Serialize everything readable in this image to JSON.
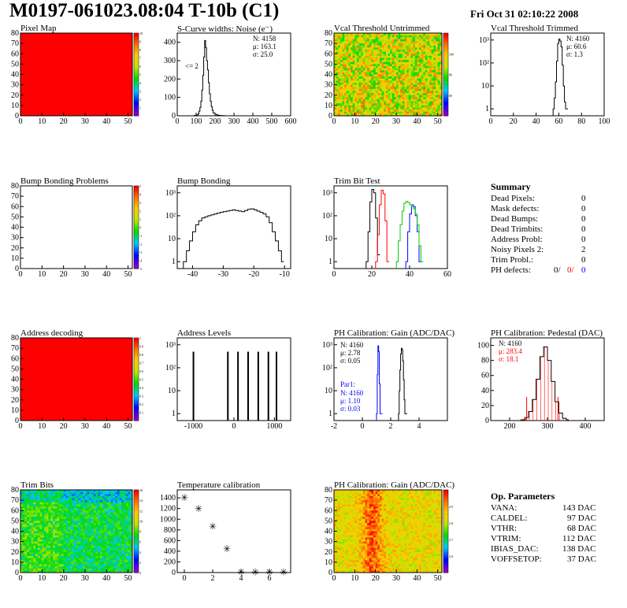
{
  "header": {
    "title": "M0197-061023.08:04 T-10b (C1)",
    "date": "Fri Oct 31 02:10:22 2008"
  },
  "panels": [
    {
      "id": "pixel-map",
      "title": "Pixel Map"
    },
    {
      "id": "scurve",
      "title": "S-Curve widths: Noise (e⁻)"
    },
    {
      "id": "vcal-untrimmed",
      "title": "Vcal Threshold Untrimmed"
    },
    {
      "id": "vcal-trimmed",
      "title": "Vcal Threshold Trimmed"
    },
    {
      "id": "bump-problems",
      "title": "Bump Bonding Problems"
    },
    {
      "id": "bump-bonding",
      "title": "Bump Bonding"
    },
    {
      "id": "trim-bit-test",
      "title": "Trim Bit Test"
    },
    {
      "id": "summary",
      "title": "Summary"
    },
    {
      "id": "address-decoding",
      "title": "Address decoding"
    },
    {
      "id": "address-levels",
      "title": "Address Levels"
    },
    {
      "id": "ph-gain",
      "title": "PH Calibration: Gain (ADC/DAC)"
    },
    {
      "id": "ph-pedestal",
      "title": "PH Calibration: Pedestal (DAC)"
    },
    {
      "id": "trim-bits",
      "title": "Trim Bits"
    },
    {
      "id": "temp-cal",
      "title": "Temperature calibration"
    },
    {
      "id": "ph-gain-map",
      "title": "PH Calibration: Gain (ADC/DAC)"
    },
    {
      "id": "op-params",
      "title": "Op. Parameters"
    }
  ],
  "summary": {
    "title": "Summary",
    "rows": [
      {
        "label": "Dead Pixels:",
        "value": "0"
      },
      {
        "label": "Mask defects:",
        "value": "0"
      },
      {
        "label": "Dead Bumps:",
        "value": "0"
      },
      {
        "label": "Dead Trimbits:",
        "value": "0"
      },
      {
        "label": "Address Probl:",
        "value": "0"
      },
      {
        "label": "Noisy Pixels 2:",
        "value": "2"
      },
      {
        "label": "Trim Probl.:",
        "value": "0"
      }
    ],
    "ph_defects": {
      "label": "PH defects:",
      "v1": "0/",
      "v2": "0/",
      "v3": "0"
    },
    "colors": {
      "red": "#ff0000",
      "blue": "#0000ff"
    }
  },
  "op_params": {
    "title": "Op. Parameters",
    "rows": [
      {
        "label": "VANA:",
        "value": "143 DAC"
      },
      {
        "label": "CALDEL:",
        "value": "97 DAC"
      },
      {
        "label": "VTHR:",
        "value": "68 DAC"
      },
      {
        "label": "VTRIM:",
        "value": "112 DAC"
      },
      {
        "label": "IBIAS_DAC:",
        "value": "138 DAC"
      },
      {
        "label": "VOFFSETOP:",
        "value": "37 DAC"
      }
    ]
  },
  "chart_data": [
    {
      "id": "pixel-map",
      "type": "heatmap",
      "fill": "uniform-red",
      "x_range": [
        0,
        52
      ],
      "y_range": [
        0,
        80
      ],
      "x_ticks": [
        "0",
        "10",
        "20",
        "30",
        "40",
        "50"
      ],
      "y_ticks": [
        "0",
        "10",
        "20",
        "30",
        "40",
        "50",
        "60",
        "70",
        "80"
      ],
      "z_ticks": [
        "1",
        "2",
        "3",
        "4",
        "5",
        "6",
        "7",
        "8",
        "9",
        "10"
      ],
      "z_range": [
        0,
        10
      ]
    },
    {
      "id": "scurve",
      "type": "line",
      "x_range": [
        0,
        600
      ],
      "y_range": [
        0,
        450
      ],
      "x_ticks": [
        "0",
        "100",
        "200",
        "300",
        "400",
        "500",
        "600"
      ],
      "y_ticks": [
        "0",
        "100",
        "200",
        "300",
        "400"
      ],
      "x": [
        80,
        90,
        100,
        110,
        115,
        120,
        125,
        130,
        135,
        140,
        145,
        150,
        155,
        160,
        165,
        170,
        175,
        180,
        185,
        190,
        200,
        210,
        220,
        230,
        240,
        250,
        260,
        270
      ],
      "y": [
        0,
        2,
        5,
        12,
        25,
        45,
        80,
        140,
        220,
        320,
        410,
        370,
        300,
        250,
        180,
        120,
        80,
        50,
        30,
        15,
        8,
        4,
        2,
        1,
        1,
        0,
        0,
        0
      ],
      "stats": {
        "N": "N: 4158",
        "mu": "μ: 163.1",
        "sigma": "σ: 25.0"
      },
      "annotation": "<= 2"
    },
    {
      "id": "vcal-untrimmed",
      "type": "heatmap",
      "fill": "noise-hot",
      "x_range": [
        0,
        52
      ],
      "y_range": [
        0,
        80
      ],
      "x_ticks": [
        "0",
        "10",
        "20",
        "30",
        "40",
        "50"
      ],
      "y_ticks": [
        "0",
        "10",
        "20",
        "30",
        "40",
        "50",
        "60",
        "70",
        "80"
      ],
      "z_ticks": [
        "60",
        "80",
        "100"
      ],
      "z_range": [
        40,
        120
      ]
    },
    {
      "id": "vcal-trimmed",
      "type": "line",
      "log_y": true,
      "x_range": [
        0,
        100
      ],
      "y_range": [
        0.5,
        2000
      ],
      "x_ticks": [
        "0",
        "20",
        "40",
        "60",
        "80",
        "100"
      ],
      "y_ticks": [
        "1",
        "10",
        "10²",
        "10³"
      ],
      "x": [
        55,
        56,
        57,
        58,
        59,
        60,
        61,
        62,
        63,
        64,
        65,
        66
      ],
      "y": [
        1,
        3,
        15,
        120,
        700,
        1100,
        900,
        500,
        80,
        10,
        2,
        1
      ],
      "stats": {
        "N": "N: 4160",
        "mu": "μ: 60.6",
        "sigma": "σ: 1.3"
      }
    },
    {
      "id": "bump-problems",
      "type": "heatmap",
      "fill": "empty",
      "x_range": [
        0,
        52
      ],
      "y_range": [
        0,
        80
      ],
      "x_ticks": [
        "0",
        "10",
        "20",
        "30",
        "40",
        "50"
      ],
      "y_ticks": [
        "0",
        "10",
        "20",
        "30",
        "40",
        "50",
        "60",
        "70",
        "80"
      ],
      "z_ticks": [
        "-5",
        "-4",
        "-3",
        "-2",
        "-1",
        "0",
        "1",
        "2",
        "3",
        "4",
        "5"
      ],
      "z_range": [
        -5,
        5
      ]
    },
    {
      "id": "bump-bonding",
      "type": "line",
      "log_y": true,
      "x_range": [
        -45,
        -8
      ],
      "y_range": [
        0.5,
        2000
      ],
      "x_ticks": [
        "-40",
        "-30",
        "-20",
        "-10"
      ],
      "y_ticks": [
        "1",
        "10",
        "10²",
        "10³"
      ],
      "x": [
        -43,
        -42,
        -41,
        -40,
        -39,
        -38,
        -37,
        -36,
        -35,
        -34,
        -33,
        -32,
        -31,
        -30,
        -29,
        -28,
        -27,
        -26,
        -25,
        -24,
        -23,
        -22,
        -21,
        -20,
        -19,
        -18,
        -17,
        -16,
        -15,
        -14,
        -13,
        -12,
        -11
      ],
      "y": [
        1,
        3,
        8,
        20,
        40,
        60,
        80,
        90,
        100,
        110,
        120,
        130,
        140,
        150,
        160,
        170,
        180,
        170,
        160,
        150,
        170,
        190,
        200,
        180,
        160,
        140,
        120,
        90,
        50,
        20,
        8,
        3,
        1
      ]
    },
    {
      "id": "trim-bit-test",
      "type": "line",
      "log_y": true,
      "x_range": [
        0,
        60
      ],
      "y_range": [
        0.5,
        2000
      ],
      "x_ticks": [
        "0",
        "20",
        "40",
        "60"
      ],
      "y_ticks": [
        "1",
        "10",
        "10²",
        "10³"
      ],
      "series": [
        {
          "color": "#000000",
          "x": [
            17,
            18,
            19,
            20,
            21,
            22,
            23
          ],
          "y": [
            1,
            20,
            400,
            1400,
            1000,
            80,
            2
          ]
        },
        {
          "color": "#ff0000",
          "x": [
            22,
            23,
            24,
            25,
            26,
            27,
            28
          ],
          "y": [
            1,
            15,
            300,
            1300,
            900,
            60,
            1
          ]
        },
        {
          "color": "#0000ff",
          "x": [
            38,
            39,
            40,
            41,
            42,
            43,
            44,
            45
          ],
          "y": [
            1,
            20,
            120,
            300,
            250,
            100,
            20,
            1
          ]
        },
        {
          "color": "#00cc00",
          "x": [
            33,
            34,
            35,
            36,
            37,
            38,
            39,
            40,
            41,
            42,
            43,
            44,
            45,
            46
          ],
          "y": [
            1,
            8,
            40,
            160,
            350,
            420,
            380,
            300,
            250,
            200,
            120,
            40,
            5,
            1
          ]
        }
      ]
    },
    {
      "id": "address-decoding",
      "type": "heatmap",
      "fill": "uniform-red",
      "x_range": [
        0,
        52
      ],
      "y_range": [
        0,
        80
      ],
      "x_ticks": [
        "0",
        "10",
        "20",
        "30",
        "40",
        "50"
      ],
      "y_ticks": [
        "0",
        "10",
        "20",
        "30",
        "40",
        "50",
        "60",
        "70",
        "80"
      ],
      "z_ticks": [
        "0.1",
        "0.2",
        "0.3",
        "0.4",
        "0.5",
        "0.6",
        "0.7",
        "0.8",
        "0.9",
        "1"
      ],
      "z_range": [
        0,
        1
      ]
    },
    {
      "id": "address-levels",
      "type": "bar",
      "log_y": true,
      "x_range": [
        -1400,
        1400
      ],
      "y_range": [
        0.5,
        2000
      ],
      "x_ticks": [
        "-1000",
        "0",
        "1000"
      ],
      "y_ticks": [
        "1",
        "10",
        "10²",
        "10³"
      ],
      "x": [
        -1000,
        -150,
        100,
        350,
        600,
        850,
        1050
      ],
      "y": [
        500,
        500,
        500,
        500,
        500,
        500,
        500
      ]
    },
    {
      "id": "ph-gain",
      "type": "line",
      "log_y": true,
      "x_range": [
        -2,
        6
      ],
      "y_range": [
        0.5,
        2000
      ],
      "x_ticks": [
        "-2",
        "0",
        "2",
        "4"
      ],
      "y_ticks": [
        "1",
        "10",
        "10²",
        "10³"
      ],
      "series": [
        {
          "color": "#000000",
          "x": [
            2.55,
            2.6,
            2.65,
            2.7,
            2.75,
            2.8,
            2.85,
            2.9,
            2.95,
            3.0
          ],
          "y": [
            1,
            10,
            80,
            400,
            700,
            600,
            200,
            30,
            4,
            1
          ]
        },
        {
          "color": "#0000ff",
          "x": [
            1.0,
            1.05,
            1.1,
            1.15,
            1.2,
            1.25
          ],
          "y": [
            1,
            50,
            900,
            500,
            20,
            1
          ]
        }
      ],
      "stats": {
        "N": "N: 4160",
        "mu": "μ: 2.78",
        "sigma": "σ: 0.05"
      },
      "stats2": {
        "label": "Par1:",
        "N": "N: 4160",
        "mu": "μ: 1.10",
        "sigma": "σ: 0.03"
      }
    },
    {
      "id": "ph-pedestal",
      "type": "line",
      "x_range": [
        150,
        450
      ],
      "y_range": [
        0,
        110
      ],
      "x_ticks": [
        "200",
        "300",
        "400"
      ],
      "y_ticks": [
        "0",
        "20",
        "40",
        "60",
        "80",
        "100"
      ],
      "x": [
        230,
        240,
        250,
        260,
        270,
        280,
        290,
        300,
        310,
        320,
        330,
        340,
        350
      ],
      "y": [
        1,
        4,
        12,
        28,
        55,
        85,
        98,
        80,
        52,
        25,
        10,
        3,
        1
      ],
      "stats": {
        "N": "N: 4160",
        "mu": "μ: 283.4",
        "sigma": "σ: 18.1"
      }
    },
    {
      "id": "trim-bits",
      "type": "heatmap",
      "fill": "noise-green",
      "x_range": [
        0,
        52
      ],
      "y_range": [
        0,
        80
      ],
      "x_ticks": [
        "0",
        "10",
        "20",
        "30",
        "40",
        "50"
      ],
      "y_ticks": [
        "0",
        "10",
        "20",
        "30",
        "40",
        "50",
        "60",
        "70",
        "80"
      ],
      "z_ticks": [
        "0",
        "2",
        "4",
        "6",
        "8",
        "10",
        "12",
        "14",
        "16"
      ],
      "z_range": [
        0,
        16
      ]
    },
    {
      "id": "temp-cal",
      "type": "scatter",
      "x_range": [
        -0.5,
        7.5
      ],
      "y_range": [
        0,
        1550
      ],
      "x_ticks": [
        "0",
        "2",
        "4",
        "6"
      ],
      "y_ticks": [
        "0",
        "200",
        "400",
        "600",
        "800",
        "1000",
        "1200",
        "1400"
      ],
      "x": [
        0,
        1,
        2,
        3,
        4,
        5,
        6,
        7
      ],
      "y": [
        1420,
        1210,
        880,
        460,
        20,
        20,
        20,
        20
      ]
    },
    {
      "id": "ph-gain-map",
      "type": "heatmap",
      "fill": "noise-column",
      "x_range": [
        0,
        52
      ],
      "y_range": [
        0,
        80
      ],
      "x_ticks": [
        "0",
        "10",
        "20",
        "30",
        "40",
        "50"
      ],
      "y_ticks": [
        "0",
        "10",
        "20",
        "30",
        "40",
        "50",
        "60",
        "70",
        "80"
      ],
      "z_ticks": [
        "2.6",
        "2.7",
        "2.8",
        "2.9"
      ],
      "z_range": [
        2.5,
        3.0
      ]
    }
  ]
}
